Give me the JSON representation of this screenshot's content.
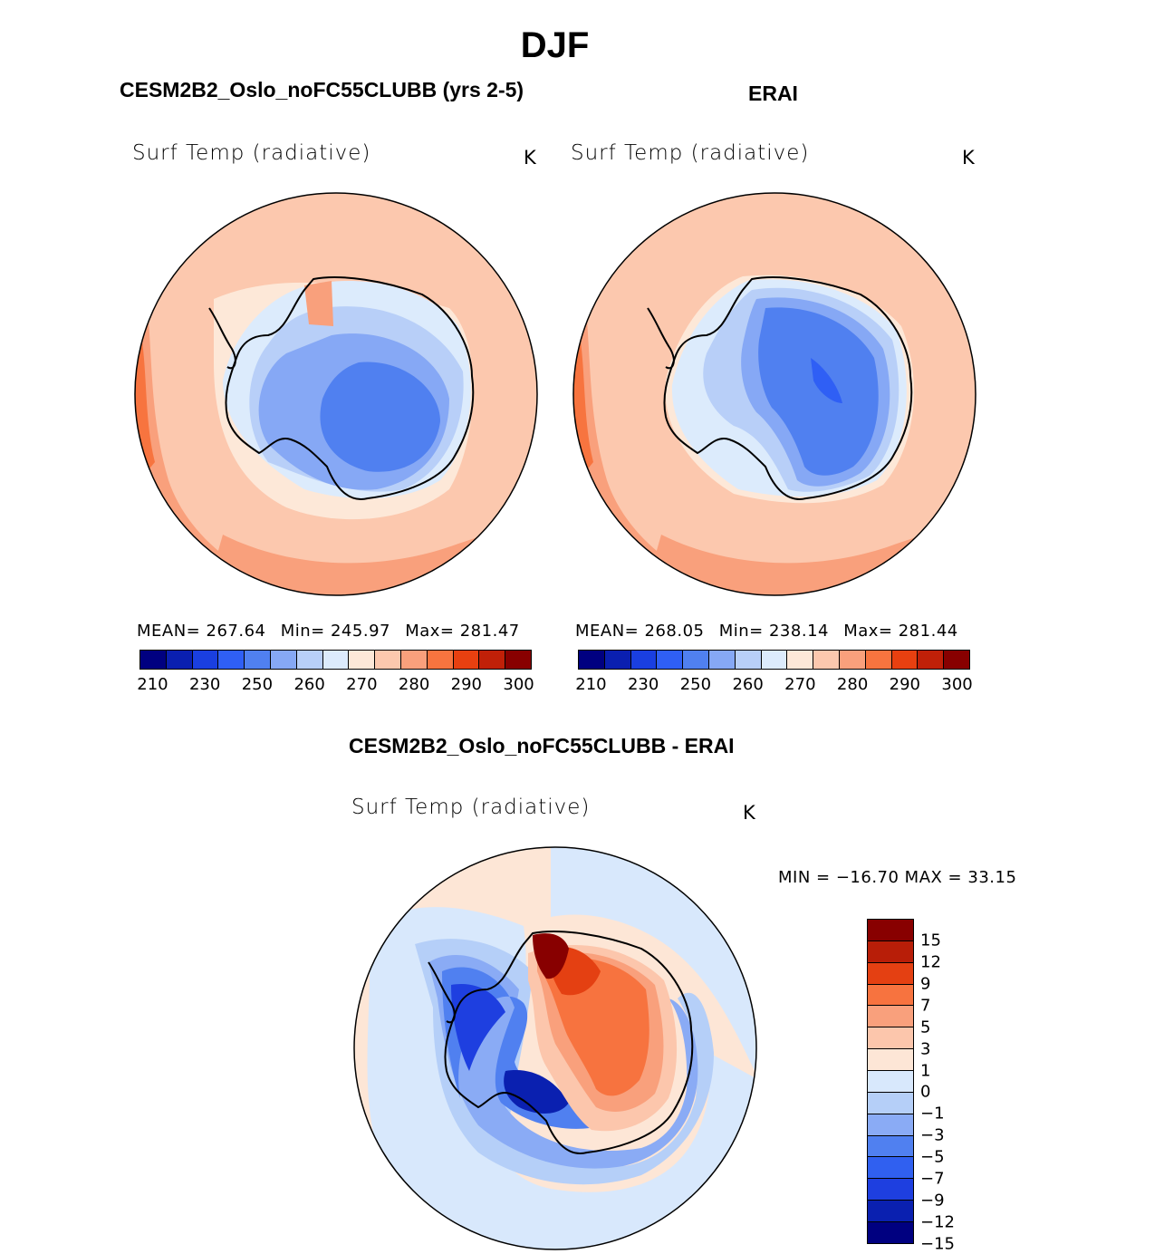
{
  "figure": {
    "title": "DJF",
    "colors": {
      "abs_scale": [
        "#000080",
        "#0a1fb0",
        "#1a3fe0",
        "#2f5ff5",
        "#5080f0",
        "#86a8f5",
        "#b8cff8",
        "#dcebfc",
        "#fde8d8",
        "#fcc8ae",
        "#f9a07c",
        "#f7743f",
        "#e84010",
        "#c02008",
        "#880000"
      ],
      "diff_scale": [
        "#000080",
        "#0a20b0",
        "#1e3fe0",
        "#3060f0",
        "#5080f0",
        "#8aabf5",
        "#b5cff8",
        "#d8e8fc",
        "#fde6d6",
        "#fcc6ac",
        "#f9a07c",
        "#f7733f",
        "#e44012",
        "#b81e08",
        "#880000"
      ]
    },
    "panels": [
      {
        "title": "CESM2B2_Oslo_noFC55CLUBB (yrs 2-5)",
        "variable": "Surf Temp (radiative)",
        "units": "K",
        "mean_label": "MEAN=",
        "mean": "267.64",
        "min_label": "Min=",
        "min": "245.97",
        "max_label": "Max=",
        "max": "281.47",
        "colorbar_ticks": [
          "210",
          "230",
          "250",
          "260",
          "270",
          "280",
          "290",
          "300"
        ]
      },
      {
        "title": "ERAI",
        "variable": "Surf Temp (radiative)",
        "units": "K",
        "mean_label": "MEAN=",
        "mean": "268.05",
        "min_label": "Min=",
        "min": "238.14",
        "max_label": "Max=",
        "max": "281.44",
        "colorbar_ticks": [
          "210",
          "230",
          "250",
          "260",
          "270",
          "280",
          "290",
          "300"
        ]
      }
    ],
    "difference": {
      "title": "CESM2B2_Oslo_noFC55CLUBB - ERAI",
      "variable": "Surf Temp (radiative)",
      "units": "K",
      "minmax_text": "MIN = −16.70 MAX =   33.15",
      "colorbar_ticks": [
        "15",
        "12",
        "9",
        "7",
        "5",
        "3",
        "1",
        "0",
        "−1",
        "−3",
        "−5",
        "−7",
        "−9",
        "−12",
        "−15"
      ]
    }
  }
}
